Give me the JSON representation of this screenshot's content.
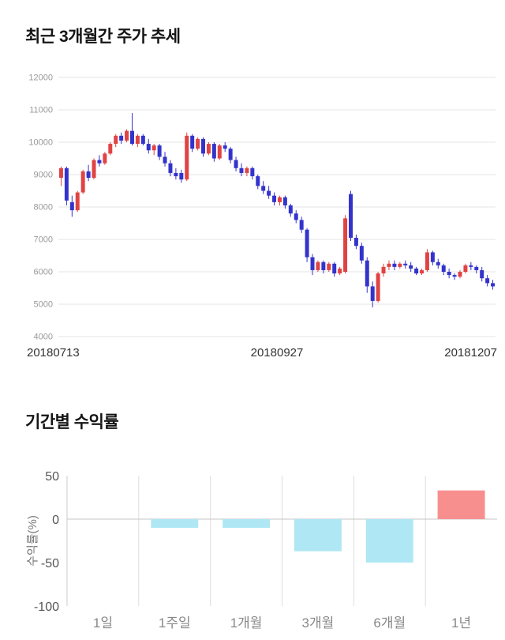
{
  "chart_data": [
    {
      "type": "candlestick",
      "title": "최근 3개월간 주가 추세",
      "ylim": [
        4000,
        12000
      ],
      "yticks": [
        4000,
        5000,
        6000,
        7000,
        8000,
        9000,
        10000,
        11000,
        12000
      ],
      "xticks": [
        "20180713",
        "20180927",
        "20181207"
      ],
      "up_color": "#e04343",
      "down_color": "#3333cc",
      "grid": "horizontal",
      "candle_format": [
        "open",
        "high",
        "low",
        "close"
      ],
      "candles": [
        [
          8900,
          9250,
          8650,
          9200
        ],
        [
          9200,
          9250,
          8050,
          8200
        ],
        [
          8150,
          8350,
          7700,
          7900
        ],
        [
          7900,
          8500,
          7850,
          8450
        ],
        [
          8450,
          9150,
          8400,
          9100
        ],
        [
          9100,
          9300,
          8800,
          8900
        ],
        [
          8900,
          9500,
          8850,
          9450
        ],
        [
          9450,
          9600,
          9250,
          9350
        ],
        [
          9350,
          9700,
          9300,
          9650
        ],
        [
          9650,
          10000,
          9600,
          9950
        ],
        [
          9950,
          10250,
          9850,
          10200
        ],
        [
          10200,
          10300,
          9950,
          10050
        ],
        [
          10050,
          10400,
          10000,
          10350
        ],
        [
          10350,
          10900,
          9900,
          9950
        ],
        [
          9950,
          10250,
          9850,
          10200
        ],
        [
          10200,
          10250,
          9900,
          9950
        ],
        [
          9950,
          10100,
          9650,
          9750
        ],
        [
          9750,
          9950,
          9600,
          9900
        ],
        [
          9900,
          9950,
          9450,
          9550
        ],
        [
          9550,
          9700,
          9250,
          9350
        ],
        [
          9350,
          9450,
          8950,
          9050
        ],
        [
          9050,
          9200,
          8850,
          8950
        ],
        [
          9050,
          9150,
          8750,
          8850
        ],
        [
          8850,
          10300,
          8800,
          10200
        ],
        [
          10200,
          10250,
          9700,
          9800
        ],
        [
          9800,
          10150,
          9750,
          10100
        ],
        [
          10100,
          10150,
          9550,
          9650
        ],
        [
          9650,
          10000,
          9600,
          9950
        ],
        [
          9950,
          10000,
          9400,
          9500
        ],
        [
          9500,
          9950,
          9450,
          9900
        ],
        [
          9900,
          10000,
          9700,
          9800
        ],
        [
          9800,
          9850,
          9350,
          9450
        ],
        [
          9450,
          9550,
          9100,
          9200
        ],
        [
          9200,
          9350,
          8950,
          9050
        ],
        [
          9050,
          9250,
          8950,
          9200
        ],
        [
          9200,
          9250,
          8850,
          8950
        ],
        [
          8950,
          9000,
          8550,
          8650
        ],
        [
          8650,
          8800,
          8400,
          8500
        ],
        [
          8500,
          8650,
          8250,
          8350
        ],
        [
          8350,
          8450,
          8050,
          8150
        ],
        [
          8150,
          8350,
          8050,
          8300
        ],
        [
          8300,
          8350,
          7950,
          8050
        ],
        [
          8050,
          8100,
          7700,
          7800
        ],
        [
          7800,
          7900,
          7500,
          7600
        ],
        [
          7600,
          7700,
          7200,
          7300
        ],
        [
          7300,
          7350,
          6300,
          6450
        ],
        [
          6450,
          6550,
          5900,
          6050
        ],
        [
          6050,
          6350,
          6000,
          6300
        ],
        [
          6300,
          6350,
          5950,
          6050
        ],
        [
          6050,
          6300,
          6000,
          6250
        ],
        [
          6250,
          6300,
          5850,
          5950
        ],
        [
          5950,
          6150,
          5900,
          6100
        ],
        [
          6000,
          7750,
          5950,
          7650
        ],
        [
          8400,
          8500,
          6950,
          7050
        ],
        [
          7050,
          7150,
          6700,
          6800
        ],
        [
          6800,
          6900,
          6250,
          6350
        ],
        [
          6350,
          6450,
          5350,
          5550
        ],
        [
          5550,
          5700,
          4900,
          5100
        ],
        [
          5100,
          6000,
          5050,
          5950
        ],
        [
          5950,
          6250,
          5850,
          6150
        ],
        [
          6150,
          6350,
          6050,
          6250
        ],
        [
          6250,
          6350,
          6050,
          6150
        ],
        [
          6150,
          6300,
          6100,
          6250
        ],
        [
          6250,
          6350,
          6100,
          6200
        ],
        [
          6200,
          6300,
          6000,
          6100
        ],
        [
          6100,
          6150,
          5900,
          5950
        ],
        [
          5950,
          6100,
          5900,
          6050
        ],
        [
          6050,
          6700,
          6000,
          6600
        ],
        [
          6600,
          6650,
          6200,
          6300
        ],
        [
          6300,
          6400,
          6100,
          6200
        ],
        [
          6200,
          6250,
          5900,
          6000
        ],
        [
          6000,
          6100,
          5800,
          5900
        ],
        [
          5900,
          5950,
          5750,
          5850
        ],
        [
          5850,
          6050,
          5800,
          6000
        ],
        [
          6000,
          6250,
          5950,
          6200
        ],
        [
          6200,
          6300,
          6050,
          6150
        ],
        [
          6150,
          6200,
          5950,
          6050
        ],
        [
          6050,
          6150,
          5700,
          5800
        ],
        [
          5800,
          5900,
          5550,
          5650
        ],
        [
          5650,
          5750,
          5450,
          5550
        ]
      ]
    },
    {
      "type": "bar",
      "title": "기간별 수익률",
      "categories": [
        "1일",
        "1주일",
        "1개월",
        "3개월",
        "6개월",
        "1년"
      ],
      "values": [
        0,
        -10,
        -10,
        -37,
        -50,
        33
      ],
      "xlabel": "",
      "ylabel": "수익률(%)",
      "ylim": [
        -100,
        50
      ],
      "yticks": [
        50,
        0,
        -50,
        -100
      ],
      "positive_color": "#f88f8f",
      "negative_color": "#b0e7f5",
      "grid": "vertical-separators",
      "legend": "none"
    }
  ]
}
